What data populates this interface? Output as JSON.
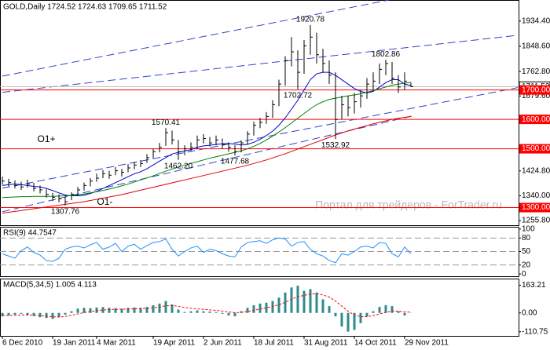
{
  "chart_data": [
    {
      "type": "ohlc",
      "title": "GOLD,Daily  1724.52 1724.63 1709.65 1711.52",
      "categories": [
        "6 Dec 2010",
        null,
        null,
        null,
        null,
        null,
        null,
        null,
        "19 Jan 2011",
        null,
        null,
        null,
        null,
        null,
        null,
        "4 Mar 2011",
        null,
        null,
        null,
        null,
        null,
        null,
        null,
        null,
        "19 Apr 2011",
        null,
        null,
        null,
        null,
        null,
        null,
        null,
        "2 Jun 2011",
        null,
        null,
        null,
        null,
        null,
        null,
        null,
        "18 Jul 2011",
        null,
        null,
        null,
        null,
        null,
        null,
        null,
        "31 Aug 2011",
        null,
        null,
        null,
        null,
        null,
        null,
        null,
        "14 Oct 2011",
        null,
        null,
        null,
        null,
        null,
        null,
        null,
        "29 Nov 2011",
        null
      ],
      "high": [
        1405,
        1398,
        1392,
        1388,
        1395,
        1384,
        1375,
        1362,
        1350,
        1345,
        1338,
        1352,
        1370,
        1385,
        1400,
        1415,
        1428,
        1425,
        1438,
        1432,
        1448,
        1456,
        1462,
        1482,
        1500,
        1520,
        1570.41,
        1562,
        1530,
        1512,
        1522,
        1545,
        1550,
        1540,
        1545,
        1535,
        1522,
        1512,
        1528,
        1560,
        1592,
        1605,
        1625,
        1665,
        1735,
        1815,
        1880,
        1835,
        1870,
        1920.78,
        1895,
        1840,
        1800,
        1760,
        1680,
        1680,
        1690,
        1700,
        1740,
        1760,
        1790,
        1802.86,
        1795,
        1750,
        1760,
        1724.63
      ],
      "low": [
        1378,
        1372,
        1365,
        1360,
        1368,
        1355,
        1348,
        1334,
        1322,
        1318,
        1307.76,
        1325,
        1342,
        1358,
        1372,
        1388,
        1400,
        1398,
        1410,
        1405,
        1420,
        1430,
        1438,
        1452,
        1468,
        1488,
        1510,
        1515,
        1462.2,
        1478,
        1492,
        1498,
        1518,
        1508,
        1512,
        1500,
        1490,
        1477.68,
        1488,
        1515,
        1545,
        1570,
        1585,
        1605,
        1645,
        1715,
        1780,
        1702.72,
        1755,
        1820,
        1790,
        1760,
        1720,
        1532.92,
        1600,
        1610,
        1620,
        1640,
        1670,
        1700,
        1720,
        1750,
        1720,
        1690,
        1700,
        1709.65
      ],
      "close": [
        1390,
        1385,
        1375,
        1370,
        1380,
        1365,
        1360,
        1345,
        1335,
        1330,
        1320,
        1345,
        1360,
        1375,
        1390,
        1400,
        1415,
        1410,
        1425,
        1420,
        1435,
        1445,
        1450,
        1470,
        1490,
        1505,
        1555,
        1530,
        1490,
        1500,
        1505,
        1530,
        1535,
        1520,
        1530,
        1515,
        1505,
        1490,
        1520,
        1550,
        1580,
        1590,
        1610,
        1650,
        1720,
        1800,
        1830,
        1760,
        1850,
        1880,
        1820,
        1790,
        1750,
        1600,
        1650,
        1640,
        1660,
        1680,
        1720,
        1730,
        1770,
        1790,
        1740,
        1710,
        1730,
        1711.52
      ],
      "color": "#000000",
      "xlim": [
        -0.375,
        82.125
      ],
      "ylim": [
        1240,
        2006
      ],
      "yticks": [
        {
          "value": 1934.4,
          "label": "1934.40"
        },
        {
          "value": 1848.6,
          "label": "1848.60"
        },
        {
          "value": 1762.8,
          "label": "1762.80"
        },
        {
          "value": 1679.6,
          "label": "1679.60"
        },
        {
          "value": 1424.8,
          "label": "1424.80"
        },
        {
          "value": 1340,
          "label": "1340.00"
        },
        {
          "value": 1255.8,
          "label": "1255.80"
        }
      ],
      "moving_averages": [
        {
          "color": "#0000cc",
          "values": [
            1375,
            1378,
            1380,
            1378,
            1375,
            1372,
            1370,
            1365,
            1358,
            1350,
            1343,
            1340,
            1340,
            1342,
            1348,
            1355,
            1365,
            1375,
            1385,
            1395,
            1405,
            1415,
            1422,
            1432,
            1445,
            1458,
            1470,
            1482,
            1488,
            1493,
            1497,
            1505,
            1510,
            1512,
            1515,
            1517,
            1518,
            1516,
            1513,
            1515,
            1522,
            1532,
            1545,
            1560,
            1580,
            1605,
            1635,
            1665,
            1700,
            1735,
            1755,
            1760,
            1760,
            1750,
            1735,
            1720,
            1705,
            1695,
            1690,
            1695,
            1710,
            1725,
            1735,
            1735,
            1720,
            1715
          ]
        },
        {
          "color": "#008000",
          "values": [
            1334,
            1335,
            1336,
            1337,
            1337,
            1338,
            1338,
            1338,
            1338,
            1339,
            1340,
            1341,
            1343,
            1346,
            1350,
            1354,
            1358,
            1363,
            1368,
            1374,
            1380,
            1387,
            1394,
            1401,
            1408,
            1416,
            1424,
            1431,
            1438,
            1444,
            1450,
            1456,
            1462,
            1468,
            1473,
            1478,
            1483,
            1488,
            1493,
            1500,
            1508,
            1518,
            1530,
            1543,
            1557,
            1572,
            1588,
            1604,
            1620,
            1636,
            1650,
            1660,
            1668,
            1672,
            1676,
            1680,
            1683,
            1687,
            1692,
            1698,
            1704,
            1710,
            1716,
            1720,
            1723,
            1726
          ]
        },
        {
          "color": "#e00000",
          "values": [
            1281,
            1284,
            1287,
            1290,
            1293,
            1296,
            1299,
            1302,
            1305,
            1308,
            1311,
            1314,
            1317,
            1320,
            1324,
            1328,
            1332,
            1336,
            1340,
            1344,
            1349,
            1354,
            1359,
            1364,
            1369,
            1374,
            1379,
            1384,
            1389,
            1394,
            1399,
            1404,
            1409,
            1414,
            1419,
            1424,
            1429,
            1434,
            1439,
            1444,
            1450,
            1456,
            1462,
            1469,
            1476,
            1483,
            1491,
            1499,
            1507,
            1515,
            1523,
            1531,
            1539,
            1547,
            1554,
            1561,
            1567,
            1573,
            1579,
            1585,
            1590,
            1595,
            1600,
            1604,
            1607,
            1610
          ]
        }
      ],
      "levels": [
        {
          "value": 1700,
          "label": "1700.00"
        },
        {
          "value": 1600,
          "label": "1600.00"
        },
        {
          "value": 1500,
          "label": "1500.00"
        },
        {
          "value": 1300,
          "label": "1300.00"
        }
      ],
      "level_color": "#ff0000",
      "last_price": {
        "value": 1711.52,
        "label": "1711.52"
      },
      "trendlines": [
        {
          "x": [
            0,
            61.5
          ],
          "y": [
            1747,
            2006
          ]
        },
        {
          "x": [
            0,
            82
          ],
          "y": [
            1692,
            1886
          ]
        },
        {
          "x": [
            0,
            82
          ],
          "y": [
            1366,
            1708
          ]
        },
        {
          "x": [
            0,
            65.3
          ],
          "y": [
            1286,
            1612
          ]
        }
      ],
      "trendline_color": "#3344cc",
      "annotations": [
        {
          "label": "1920.78",
          "x": 49,
          "value": 1920.78,
          "side": "above"
        },
        {
          "label": "1702.72",
          "x": 47,
          "value": 1702.72,
          "side": "below"
        },
        {
          "label": "1802.86",
          "x": 61,
          "value": 1802.86,
          "side": "above"
        },
        {
          "label": "1570.41",
          "x": 26,
          "value": 1570.41,
          "side": "above"
        },
        {
          "label": "1462.20",
          "x": 28,
          "value": 1462.2,
          "side": "below"
        },
        {
          "label": "1477.68",
          "x": 37,
          "value": 1477.68,
          "side": "below"
        },
        {
          "label": "1532.92",
          "x": 53,
          "value": 1532.92,
          "side": "below"
        },
        {
          "label": "1307.76",
          "x": 10,
          "value": 1307.76,
          "side": "below"
        }
      ],
      "notes": [
        {
          "text": "O1+",
          "x": 7,
          "y": 1531
        },
        {
          "text": "O1-",
          "x": 16.3,
          "y": 1318
        }
      ],
      "watermark": "Портал для трейдеров - ForTrader.ru"
    },
    {
      "type": "line",
      "title": "RSI(9) 44.7547",
      "values": [
        45,
        40,
        35,
        52,
        60,
        48,
        42,
        30,
        28,
        35,
        55,
        60,
        62,
        58,
        65,
        70,
        55,
        60,
        68,
        50,
        62,
        66,
        55,
        63,
        70,
        72,
        78,
        55,
        40,
        50,
        58,
        62,
        48,
        55,
        52,
        45,
        40,
        38,
        60,
        70,
        72,
        74,
        68,
        76,
        80,
        78,
        62,
        70,
        72,
        55,
        45,
        40,
        30,
        25,
        45,
        42,
        50,
        60,
        62,
        58,
        70,
        68,
        45,
        38,
        60,
        44.7547
      ],
      "color": "#1e90ff",
      "ylim": [
        -5,
        105
      ],
      "yticks": [
        100,
        80,
        50,
        20,
        0
      ],
      "levels": [
        80,
        50,
        20
      ]
    },
    {
      "type": "bar",
      "title": "MACD(5,34,5) 1.005 4.113",
      "values": [
        -20,
        -15,
        -10,
        -5,
        -12,
        -18,
        -25,
        -30,
        -35,
        -25,
        -10,
        10,
        25,
        30,
        28,
        32,
        35,
        30,
        28,
        25,
        30,
        32,
        30,
        35,
        45,
        55,
        70,
        50,
        20,
        5,
        10,
        15,
        10,
        8,
        5,
        -5,
        -15,
        -20,
        10,
        30,
        45,
        55,
        60,
        70,
        90,
        120,
        150,
        160,
        130,
        140,
        120,
        80,
        40,
        -20,
        -80,
        -110,
        -100,
        -60,
        -20,
        10,
        35,
        45,
        40,
        10,
        -15,
        1.005
      ],
      "signal": [
        -15,
        -15,
        -14,
        -12,
        -12,
        -13,
        -16,
        -19,
        -23,
        -24,
        -21,
        -14,
        -6,
        2,
        8,
        13,
        17,
        20,
        21,
        22,
        23,
        24,
        25,
        27,
        30,
        35,
        42,
        44,
        39,
        32,
        27,
        24,
        21,
        18,
        15,
        11,
        6,
        1,
        3,
        8,
        15,
        23,
        30,
        38,
        48,
        62,
        80,
        96,
        103,
        111,
        113,
        106,
        93,
        70,
        40,
        10,
        -12,
        -22,
        -22,
        -16,
        -6,
        4,
        11,
        11,
        6,
        4.113
      ],
      "color": "#2e8b8b",
      "signal_color": "#ff0000",
      "ylim": [
        -135,
        202
      ],
      "yticks": [
        {
          "value": 163.21,
          "label": "163.21"
        },
        {
          "value": 0,
          "label": "0.00"
        },
        {
          "value": -110.75,
          "label": "-110.75"
        }
      ]
    }
  ]
}
